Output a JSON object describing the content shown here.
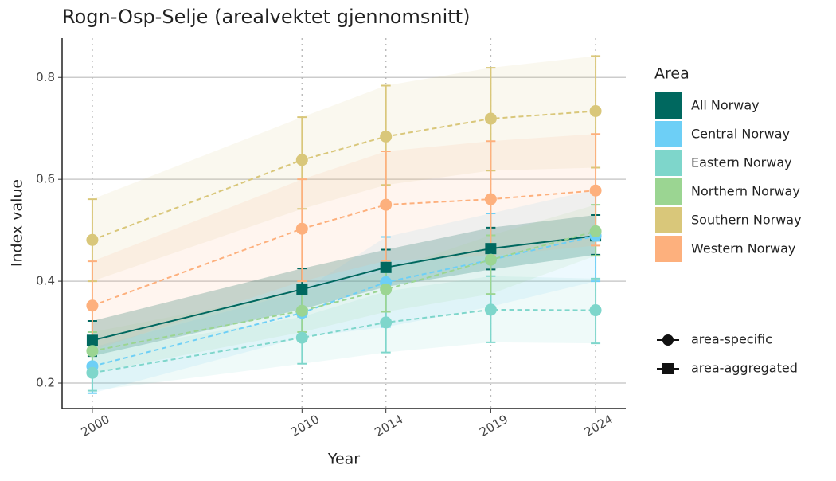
{
  "chart_data": {
    "type": "line",
    "title": "Rogn-Osp-Selje (arealvektet gjennomsnitt)",
    "x_label": "Year",
    "y_label": "Index value",
    "x": [
      2000,
      2010,
      2014,
      2019,
      2024
    ],
    "xlim": [
      1998.56,
      2025.44
    ],
    "xticks": [
      2000,
      2010,
      2014,
      2019,
      2024
    ],
    "ylim": [
      0.15,
      0.877
    ],
    "yticks": [
      0.2,
      0.4,
      0.6,
      0.8
    ],
    "grid": true,
    "legend_position": "right",
    "legend_title": "Area",
    "shape_legend": [
      {
        "label": "area-specific",
        "shape": "circle"
      },
      {
        "label": "area-aggregated",
        "shape": "square"
      }
    ],
    "series": [
      {
        "name": "All Norway",
        "color": "#00685f",
        "shape": "square",
        "dashed": false,
        "values": [
          0.284,
          0.384,
          0.427,
          0.464,
          0.489
        ],
        "lower": [
          0.253,
          0.345,
          0.389,
          0.423,
          0.452
        ],
        "upper": [
          0.322,
          0.425,
          0.462,
          0.505,
          0.53
        ]
      },
      {
        "name": "Central Norway",
        "color": "#6dcff6",
        "shape": "circle",
        "dashed": true,
        "values": [
          0.233,
          0.338,
          0.398,
          0.442,
          0.489
        ],
        "lower": [
          0.18,
          0.29,
          0.31,
          0.35,
          0.4
        ],
        "upper": [
          0.27,
          0.38,
          0.487,
          0.533,
          0.58
        ]
      },
      {
        "name": "Eastern Norway",
        "color": "#7ed6cb",
        "shape": "circle",
        "dashed": true,
        "values": [
          0.22,
          0.289,
          0.319,
          0.344,
          0.343
        ],
        "lower": [
          0.185,
          0.238,
          0.26,
          0.28,
          0.278
        ],
        "upper": [
          0.26,
          0.33,
          0.38,
          0.41,
          0.405
        ]
      },
      {
        "name": "Northern Norway",
        "color": "#9bd592",
        "shape": "circle",
        "dashed": true,
        "values": [
          0.263,
          0.342,
          0.384,
          0.442,
          0.498
        ],
        "lower": [
          0.22,
          0.3,
          0.34,
          0.375,
          0.45
        ],
        "upper": [
          0.3,
          0.38,
          0.42,
          0.49,
          0.55
        ]
      },
      {
        "name": "Southern Norway",
        "color": "#d9c77a",
        "shape": "circle",
        "dashed": true,
        "values": [
          0.481,
          0.638,
          0.684,
          0.719,
          0.734
        ],
        "lower": [
          0.4,
          0.542,
          0.589,
          0.617,
          0.623
        ],
        "upper": [
          0.561,
          0.722,
          0.784,
          0.819,
          0.842
        ]
      },
      {
        "name": "Western Norway",
        "color": "#fdb07d",
        "shape": "circle",
        "dashed": true,
        "values": [
          0.352,
          0.503,
          0.55,
          0.561,
          0.578
        ],
        "lower": [
          0.264,
          0.4,
          0.44,
          0.45,
          0.47
        ],
        "upper": [
          0.439,
          0.6,
          0.655,
          0.675,
          0.689
        ]
      }
    ]
  }
}
